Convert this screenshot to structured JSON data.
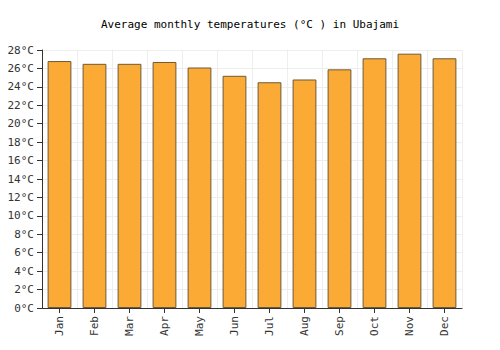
{
  "chart_data": {
    "type": "bar",
    "title": "Average monthly temperatures (°C ) in Ubajami",
    "categories": [
      "Jan",
      "Feb",
      "Mar",
      "Apr",
      "May",
      "Jun",
      "Jul",
      "Aug",
      "Sep",
      "Oct",
      "Nov",
      "Dec"
    ],
    "values": [
      26.8,
      26.5,
      26.5,
      26.7,
      26.1,
      25.2,
      24.5,
      24.8,
      25.9,
      27.1,
      27.6,
      27.1
    ],
    "color": "#fbab35",
    "ylim": [
      0,
      28
    ],
    "yticks": [
      {
        "value": 0,
        "label": "0°C"
      },
      {
        "value": 2,
        "label": "2°C"
      },
      {
        "value": 4,
        "label": "4°C"
      },
      {
        "value": 6,
        "label": "6°C"
      },
      {
        "value": 8,
        "label": "8°C"
      },
      {
        "value": 10,
        "label": "10°C"
      },
      {
        "value": 12,
        "label": "12°C"
      },
      {
        "value": 14,
        "label": "14°C"
      },
      {
        "value": 16,
        "label": "16°C"
      },
      {
        "value": 18,
        "label": "18°C"
      },
      {
        "value": 20,
        "label": "20°C"
      },
      {
        "value": 22,
        "label": "22°C"
      },
      {
        "value": 24,
        "label": "24°C"
      },
      {
        "value": 26,
        "label": "26°C"
      },
      {
        "value": 28,
        "label": "28°C"
      }
    ],
    "grid": true
  }
}
